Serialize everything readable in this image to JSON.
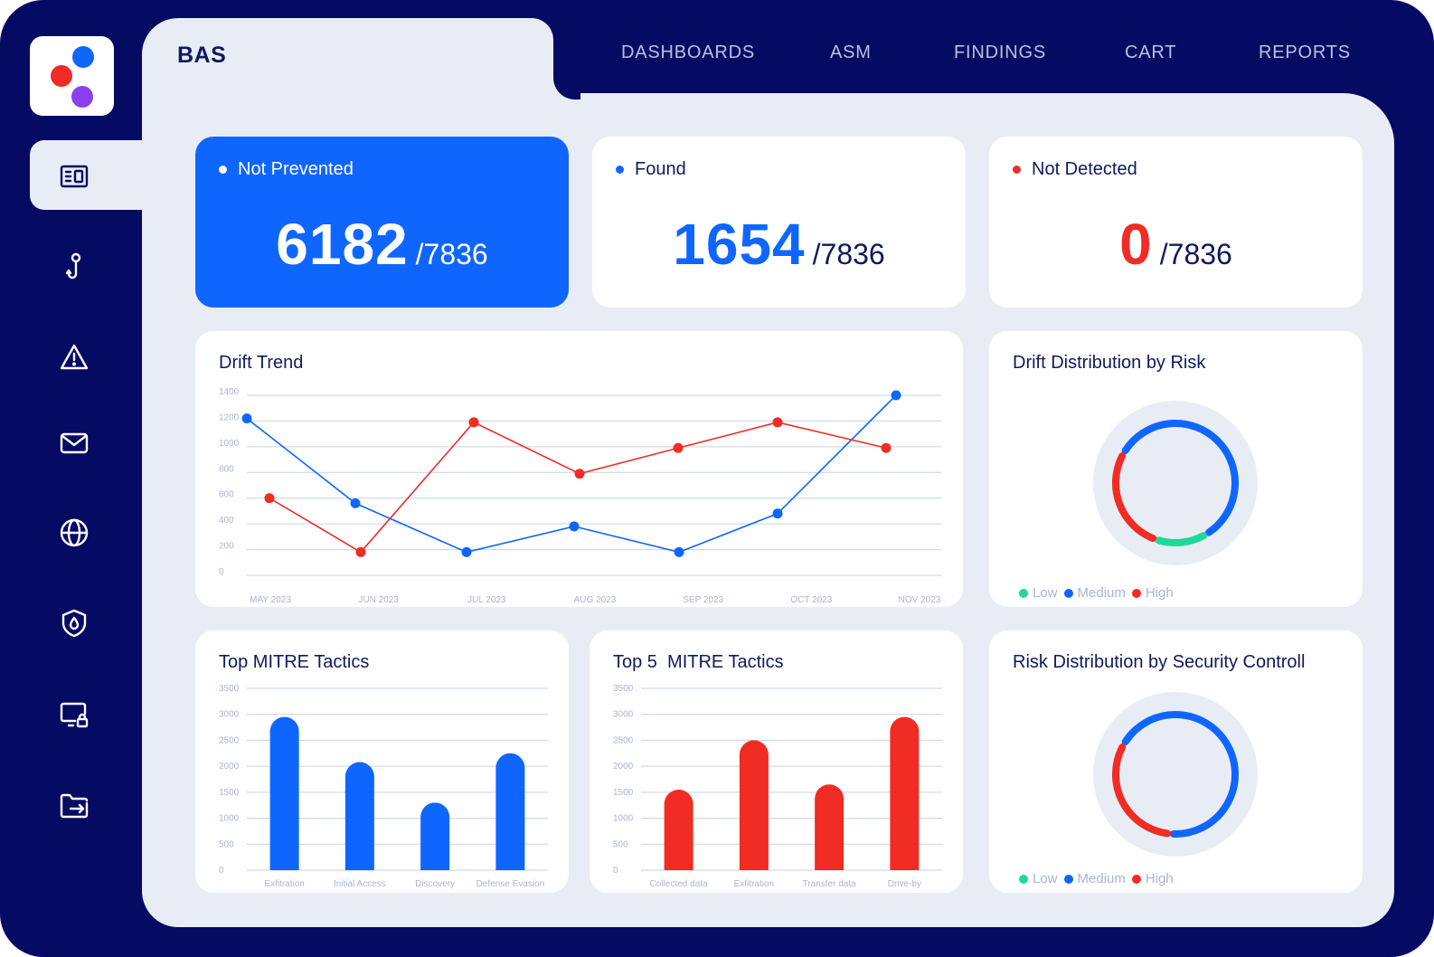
{
  "app": {
    "title": "BAS"
  },
  "nav": [
    {
      "label": "DASHBOARDS"
    },
    {
      "label": "ASM"
    },
    {
      "label": "FINDINGS"
    },
    {
      "label": "CART"
    },
    {
      "label": "REPORTS"
    }
  ],
  "sidebar": {
    "items": [
      {
        "icon": "dashboard-icon",
        "active": true
      },
      {
        "icon": "hook-icon"
      },
      {
        "icon": "warning-icon"
      },
      {
        "icon": "mail-icon"
      },
      {
        "icon": "globe-icon"
      },
      {
        "icon": "shield-icon"
      },
      {
        "icon": "device-lock-icon"
      },
      {
        "icon": "folder-export-icon"
      }
    ]
  },
  "colors": {
    "blue": "#0f66ff",
    "red": "#f02c24",
    "green": "#1ed99a",
    "navy": "#050a63",
    "bg": "#e8edf5"
  },
  "stats": [
    {
      "label": "Not Prevented",
      "value": "6182",
      "total": "/7836"
    },
    {
      "label": "Found",
      "value": "1654",
      "total": "/7836"
    },
    {
      "label": "Not Detected",
      "value": "0",
      "total": "/7836"
    }
  ],
  "drift_trend": {
    "title": "Drift Trend"
  },
  "drift_distribution": {
    "title": "Drift Distribution by Risk",
    "legend": [
      "Low",
      "Medium",
      "High"
    ]
  },
  "top_mitre": {
    "title": "Top MITRE Tactics"
  },
  "top5_mitre": {
    "title": "Top 5  MITRE Tactics"
  },
  "risk_distribution": {
    "title": "Risk Distribution by Security Controll",
    "legend": [
      "Low",
      "Medium",
      "High"
    ]
  },
  "chart_data": [
    {
      "type": "line",
      "title": "Drift Trend",
      "x": [
        "MAY 2023",
        "JUN 2023",
        "JUL 2023",
        "AUG 2023",
        "SEP 2023",
        "OCT 2023",
        "NOV 2023"
      ],
      "yticks": [
        0,
        200,
        400,
        600,
        800,
        1000,
        1200,
        1400
      ],
      "ylim": [
        0,
        1400
      ],
      "grid": true,
      "series": [
        {
          "color": "#0f66ff",
          "values": [
            1220,
            560,
            180,
            380,
            180,
            480,
            1400
          ]
        },
        {
          "color": "#f02c24",
          "values": [
            600,
            180,
            1190,
            790,
            990,
            1190,
            990
          ]
        }
      ]
    },
    {
      "type": "pie",
      "title": "Drift Distribution by Risk",
      "categories": [
        "Low",
        "Medium",
        "High"
      ],
      "values": [
        14,
        58,
        28
      ],
      "colors": [
        "#1ed99a",
        "#0f66ff",
        "#f02c24"
      ]
    },
    {
      "type": "bar",
      "title": "Top MITRE Tactics",
      "categories": [
        "Exfitration",
        "Initial Access",
        "Discovery",
        "Defense Evasion"
      ],
      "values": [
        2950,
        2080,
        1300,
        2250
      ],
      "yticks": [
        0,
        500,
        1000,
        1500,
        2000,
        2500,
        3000,
        3500
      ],
      "ylim": [
        0,
        3500
      ],
      "color": "#0f66ff"
    },
    {
      "type": "bar",
      "title": "Top 5  MITRE Tactics",
      "categories": [
        "Collected data",
        "Exfitration",
        "Transfer data",
        "Drive-by"
      ],
      "values": [
        1550,
        2500,
        1650,
        2950
      ],
      "yticks": [
        0,
        500,
        1000,
        1500,
        2000,
        2500,
        3000,
        3500
      ],
      "ylim": [
        0,
        3500
      ],
      "color": "#f02c24"
    },
    {
      "type": "pie",
      "title": "Risk Distribution by Security Controll",
      "categories": [
        "Low",
        "Medium",
        "High"
      ],
      "values": [
        0,
        68,
        32
      ],
      "colors": [
        "#1ed99a",
        "#0f66ff",
        "#f02c24"
      ]
    }
  ]
}
